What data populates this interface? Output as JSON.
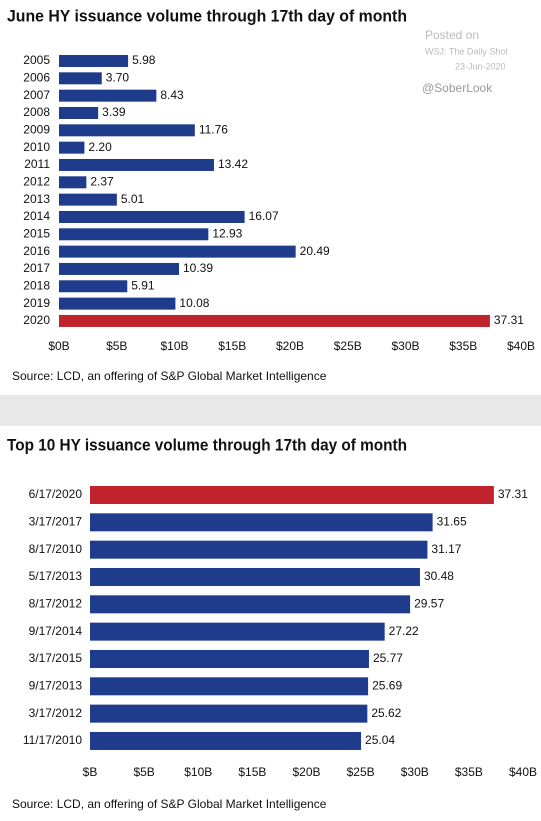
{
  "chart_data": [
    {
      "type": "barh",
      "title": "June HY issuance volume through 17th day of month",
      "categories": [
        "2005",
        "2006",
        "2007",
        "2008",
        "2009",
        "2010",
        "2011",
        "2012",
        "2013",
        "2014",
        "2015",
        "2016",
        "2017",
        "2018",
        "2019",
        "2020"
      ],
      "values": [
        5.98,
        3.7,
        8.43,
        3.39,
        11.76,
        2.2,
        13.42,
        2.37,
        5.01,
        16.07,
        12.93,
        20.49,
        10.39,
        5.91,
        10.08,
        37.31
      ],
      "value_labels": [
        "5.98",
        "3.70",
        "8.43",
        "3.39",
        "11.76",
        "2.20",
        "13.42",
        "2.37",
        "5.01",
        "16.07",
        "12.93",
        "20.49",
        "10.39",
        "5.91",
        "10.08",
        "37.31"
      ],
      "colors": [
        "#1f3b8c",
        "#1f3b8c",
        "#1f3b8c",
        "#1f3b8c",
        "#1f3b8c",
        "#1f3b8c",
        "#1f3b8c",
        "#1f3b8c",
        "#1f3b8c",
        "#1f3b8c",
        "#1f3b8c",
        "#1f3b8c",
        "#1f3b8c",
        "#1f3b8c",
        "#1f3b8c",
        "#c0232c"
      ],
      "xlim": [
        0,
        40
      ],
      "xticks": [
        {
          "value": 0,
          "label": "$0B"
        },
        {
          "value": 5,
          "label": "$5B"
        },
        {
          "value": 10,
          "label": "$10B"
        },
        {
          "value": 15,
          "label": "$15B"
        },
        {
          "value": 20,
          "label": "$20B"
        },
        {
          "value": 25,
          "label": "$25B"
        },
        {
          "value": 30,
          "label": "$30B"
        },
        {
          "value": 35,
          "label": "$35B"
        },
        {
          "value": 40,
          "label": "$40B"
        }
      ],
      "source": "Source: LCD, an offering of S&P Global Market Intelligence",
      "watermark": [
        "Posted on",
        "WSJ: The Daily Shot",
        "23-Jun-2020",
        "@SoberLook"
      ]
    },
    {
      "type": "barh",
      "title": "Top 10 HY issuance volume through 17th day of month",
      "categories": [
        "6/17/2020",
        "3/17/2017",
        "8/17/2010",
        "5/17/2013",
        "8/17/2012",
        "9/17/2014",
        "3/17/2015",
        "9/17/2013",
        "3/17/2012",
        "11/17/2010"
      ],
      "values": [
        37.31,
        31.65,
        31.17,
        30.48,
        29.57,
        27.22,
        25.77,
        25.69,
        25.62,
        25.04
      ],
      "colors": [
        "#c0232c",
        "#1f3b8c",
        "#1f3b8c",
        "#1f3b8c",
        "#1f3b8c",
        "#1f3b8c",
        "#1f3b8c",
        "#1f3b8c",
        "#1f3b8c",
        "#1f3b8c"
      ],
      "xlim": [
        0,
        40
      ],
      "xticks": [
        {
          "value": 0,
          "label": "$B"
        },
        {
          "value": 5,
          "label": "$5B"
        },
        {
          "value": 10,
          "label": "$10B"
        },
        {
          "value": 15,
          "label": "$15B"
        },
        {
          "value": 20,
          "label": "$20B"
        },
        {
          "value": 25,
          "label": "$25B"
        },
        {
          "value": 30,
          "label": "$30B"
        },
        {
          "value": 35,
          "label": "$35B"
        },
        {
          "value": 40,
          "label": "$40B"
        }
      ],
      "source": "Source: LCD, an offering of S&P Global Market Intelligence"
    }
  ]
}
